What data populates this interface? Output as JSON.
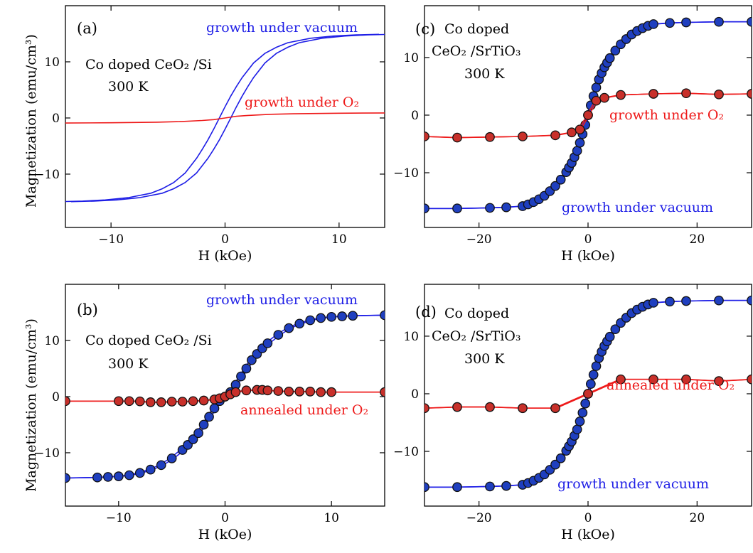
{
  "figure": {
    "ylabel": "Magnetization (emu/cm³)",
    "xlabel": "H (kOe)"
  },
  "colors": {
    "blue": "#1e1ee6",
    "red": "#ee1a1a",
    "blue_marker": "#1f3fbf",
    "red_marker": "#c8302a"
  },
  "chart_data": [
    {
      "panel_label": "(a)",
      "type": "line",
      "markers": false,
      "xlabel": "H (kOe)",
      "ylabel": "Magnetization (emu/cm³)",
      "xlim": [
        -14,
        14
      ],
      "ylim": [
        -19.5,
        20
      ],
      "xticks": [
        -10,
        0,
        10
      ],
      "yticks": [
        -10,
        0,
        10
      ],
      "xtick_labels": [
        "−10",
        "0",
        "10"
      ],
      "ytick_labels": [
        "−10",
        "0",
        "10"
      ],
      "annotations": {
        "sample": "Co doped CeO₂ /Si",
        "temperature": "300 K"
      },
      "series": [
        {
          "name": "growth under vacuum",
          "color": "blue",
          "hysteresis": true,
          "x": [
            -14,
            -12,
            -10,
            -8,
            -6,
            -5,
            -4,
            -3,
            -2,
            -1.5,
            -1,
            -0.5,
            0,
            0.5,
            1,
            1.5,
            2,
            3,
            4,
            5,
            6,
            8,
            10,
            12,
            14
          ],
          "y": [
            -14.9,
            -14.8,
            -14.6,
            -14.2,
            -13.4,
            -12.6,
            -11.5,
            -9.8,
            -7.2,
            -5.6,
            -3.9,
            -2.0,
            0,
            2.0,
            3.9,
            5.6,
            7.2,
            9.8,
            11.5,
            12.6,
            13.4,
            14.2,
            14.6,
            14.8,
            14.9
          ],
          "coercive_field": 0.5
        },
        {
          "name": "growth under O₂",
          "color": "red",
          "hysteresis": false,
          "x": [
            -14,
            -10,
            -6,
            -4,
            -2,
            -1,
            0,
            1,
            2,
            4,
            6,
            10,
            14
          ],
          "y": [
            -0.9,
            -0.85,
            -0.75,
            -0.65,
            -0.45,
            -0.3,
            0,
            0.3,
            0.45,
            0.65,
            0.75,
            0.85,
            0.9
          ]
        }
      ]
    },
    {
      "panel_label": "(b)",
      "type": "line",
      "markers": true,
      "xlabel": "H (kOe)",
      "ylabel": "Magnetization (emu/cm³)",
      "xlim": [
        -15,
        15
      ],
      "ylim": [
        -19.5,
        20
      ],
      "xticks": [
        -10,
        0,
        10
      ],
      "yticks": [
        -10,
        0,
        10
      ],
      "xtick_labels": [
        "−10",
        "0",
        "10"
      ],
      "ytick_labels": [
        "−10",
        "0",
        "10"
      ],
      "annotations": {
        "sample": "Co doped CeO₂ /Si",
        "temperature": "300 K"
      },
      "series": [
        {
          "name": "growth under vacuum",
          "color": "blue",
          "hysteresis": false,
          "x": [
            -15,
            -12,
            -11,
            -10,
            -9,
            -8,
            -7,
            -6,
            -5,
            -4,
            -3.5,
            -3,
            -2.5,
            -2,
            -1.5,
            -1,
            -0.5,
            0,
            0.5,
            1,
            1.5,
            2,
            2.5,
            3,
            3.5,
            4,
            5,
            6,
            7,
            8,
            9,
            10,
            11,
            12,
            15
          ],
          "y": [
            -14.5,
            -14.4,
            -14.3,
            -14.2,
            -14.0,
            -13.6,
            -13.0,
            -12.2,
            -11.0,
            -9.5,
            -8.6,
            -7.6,
            -6.5,
            -5.0,
            -3.6,
            -2.1,
            -0.8,
            0,
            0.8,
            2.1,
            3.6,
            5.0,
            6.5,
            7.6,
            8.6,
            9.5,
            11.0,
            12.2,
            13.0,
            13.6,
            14.0,
            14.2,
            14.3,
            14.4,
            14.5
          ]
        },
        {
          "name": "annealed under O₂",
          "color": "red",
          "hysteresis": false,
          "x": [
            -15,
            -10,
            -9,
            -8,
            -7,
            -6,
            -5,
            -4,
            -3,
            -2,
            -1,
            -0.5,
            0,
            0.5,
            1,
            2,
            3,
            3.5,
            4,
            5,
            6,
            7,
            8,
            9,
            10,
            15
          ],
          "y": [
            -0.8,
            -0.8,
            -0.8,
            -0.85,
            -1.0,
            -1.0,
            -0.9,
            -0.9,
            -0.8,
            -0.7,
            -0.5,
            -0.3,
            0,
            0.4,
            0.8,
            1.1,
            1.2,
            1.2,
            1.1,
            1.0,
            0.9,
            0.9,
            0.9,
            0.8,
            0.8,
            0.8
          ]
        }
      ]
    },
    {
      "panel_label": "(c)",
      "type": "line",
      "markers": true,
      "xlabel": "H (kOe)",
      "ylabel": "",
      "xlim": [
        -30,
        30
      ],
      "ylim": [
        -19.5,
        19
      ],
      "xticks": [
        -20,
        0,
        20
      ],
      "yticks": [
        -10,
        0,
        10
      ],
      "xtick_labels": [
        "−20",
        "0",
        "20"
      ],
      "ytick_labels": [
        "−10",
        "0",
        "10"
      ],
      "annotations": {
        "sample_line1": "Co doped",
        "sample_line2": "CeO₂ /SrTiO₃",
        "temperature": "300 K"
      },
      "series": [
        {
          "name": "growth under vacuum",
          "color": "blue",
          "hysteresis": false,
          "x": [
            -30,
            -24,
            -18,
            -15,
            -12,
            -11,
            -10,
            -9,
            -8,
            -7,
            -6,
            -5,
            -4,
            -3.5,
            -3,
            -2.5,
            -2,
            -1.5,
            -1,
            -0.5,
            0,
            0.5,
            1,
            1.5,
            2,
            2.5,
            3,
            3.5,
            4,
            5,
            6,
            7,
            8,
            9,
            10,
            11,
            12,
            15,
            18,
            24,
            30
          ],
          "y": [
            -16.2,
            -16.2,
            -16.1,
            -16.0,
            -15.8,
            -15.5,
            -15.1,
            -14.6,
            -14.0,
            -13.2,
            -12.3,
            -11.2,
            -9.9,
            -9.1,
            -8.3,
            -7.3,
            -6.2,
            -4.8,
            -3.3,
            -1.7,
            0,
            1.7,
            3.3,
            4.8,
            6.2,
            7.3,
            8.3,
            9.1,
            9.9,
            11.2,
            12.3,
            13.2,
            14.0,
            14.6,
            15.1,
            15.5,
            15.8,
            16.0,
            16.1,
            16.2,
            16.2
          ]
        },
        {
          "name": "growth under O₂",
          "color": "red",
          "hysteresis": false,
          "x": [
            -30,
            -24,
            -18,
            -12,
            -6,
            -3,
            -1.5,
            0,
            1.5,
            3,
            6,
            12,
            18,
            24,
            30
          ],
          "y": [
            -3.7,
            -3.9,
            -3.8,
            -3.7,
            -3.5,
            -3.0,
            -2.5,
            0,
            2.5,
            3.0,
            3.5,
            3.7,
            3.8,
            3.6,
            3.7
          ]
        }
      ]
    },
    {
      "panel_label": "(d)",
      "type": "line",
      "markers": true,
      "xlabel": "H (kOe)",
      "ylabel": "",
      "xlim": [
        -30,
        30
      ],
      "ylim": [
        -19.5,
        19
      ],
      "xticks": [
        -20,
        0,
        20
      ],
      "yticks": [
        -10,
        0,
        10
      ],
      "xtick_labels": [
        "−20",
        "0",
        "20"
      ],
      "ytick_labels": [
        "−10",
        "0",
        "10"
      ],
      "annotations": {
        "sample_line1": "Co doped",
        "sample_line2": "CeO₂ /SrTiO₃",
        "temperature": "300 K"
      },
      "series": [
        {
          "name": "growth under vacuum",
          "color": "blue",
          "hysteresis": false,
          "x": [
            -30,
            -24,
            -18,
            -15,
            -12,
            -11,
            -10,
            -9,
            -8,
            -7,
            -6,
            -5,
            -4,
            -3.5,
            -3,
            -2.5,
            -2,
            -1.5,
            -1,
            -0.5,
            0,
            0.5,
            1,
            1.5,
            2,
            2.5,
            3,
            3.5,
            4,
            5,
            6,
            7,
            8,
            9,
            10,
            11,
            12,
            15,
            18,
            24,
            30
          ],
          "y": [
            -16.2,
            -16.2,
            -16.1,
            -16.0,
            -15.8,
            -15.5,
            -15.1,
            -14.6,
            -14.0,
            -13.2,
            -12.3,
            -11.2,
            -9.9,
            -9.1,
            -8.3,
            -7.3,
            -6.2,
            -4.8,
            -3.3,
            -1.7,
            0,
            1.7,
            3.3,
            4.8,
            6.2,
            7.3,
            8.3,
            9.1,
            9.9,
            11.2,
            12.3,
            13.2,
            14.0,
            14.6,
            15.1,
            15.5,
            15.8,
            16.0,
            16.1,
            16.2,
            16.2
          ]
        },
        {
          "name": "annealed under O₂",
          "color": "red",
          "hysteresis": false,
          "x": [
            -30,
            -24,
            -18,
            -12,
            -6,
            0,
            6,
            12,
            18,
            24,
            30
          ],
          "y": [
            -2.5,
            -2.3,
            -2.3,
            -2.5,
            -2.5,
            0,
            2.5,
            2.5,
            2.5,
            2.2,
            2.5
          ]
        }
      ]
    }
  ]
}
